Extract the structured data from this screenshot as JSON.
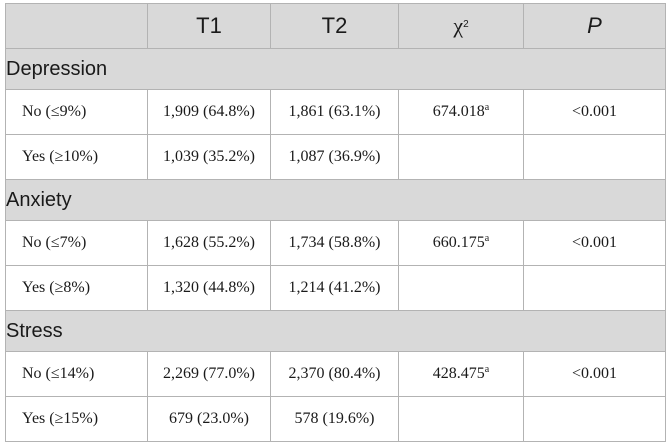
{
  "header": {
    "col0": "",
    "col1": "T1",
    "col2": "T2",
    "col3_base": "χ",
    "col3_sup": "2",
    "col4": "P"
  },
  "sections": [
    {
      "title": "Depression",
      "rows": [
        {
          "label": "No (≤9%)",
          "t1": "1,909 (64.8%)",
          "t2": "1,861 (63.1%)",
          "chi": "674.018",
          "chi_sup": "a",
          "p": "<0.001"
        },
        {
          "label": "Yes (≥10%)",
          "t1": "1,039 (35.2%)",
          "t2": "1,087 (36.9%)",
          "chi": "",
          "chi_sup": "",
          "p": ""
        }
      ]
    },
    {
      "title": "Anxiety",
      "rows": [
        {
          "label": "No (≤7%)",
          "t1": "1,628 (55.2%)",
          "t2": "1,734 (58.8%)",
          "chi": "660.175",
          "chi_sup": "a",
          "p": "<0.001"
        },
        {
          "label": "Yes (≥8%)",
          "t1": "1,320 (44.8%)",
          "t2": "1,214 (41.2%)",
          "chi": "",
          "chi_sup": "",
          "p": ""
        }
      ]
    },
    {
      "title": "Stress",
      "rows": [
        {
          "label": "No (≤14%)",
          "t1": "2,269 (77.0%)",
          "t2": "2,370 (80.4%)",
          "chi": "428.475",
          "chi_sup": "a",
          "p": "<0.001"
        },
        {
          "label": "Yes (≥15%)",
          "t1": "679 (23.0%)",
          "t2": "578 (19.6%)",
          "chi": "",
          "chi_sup": "",
          "p": ""
        }
      ]
    }
  ]
}
